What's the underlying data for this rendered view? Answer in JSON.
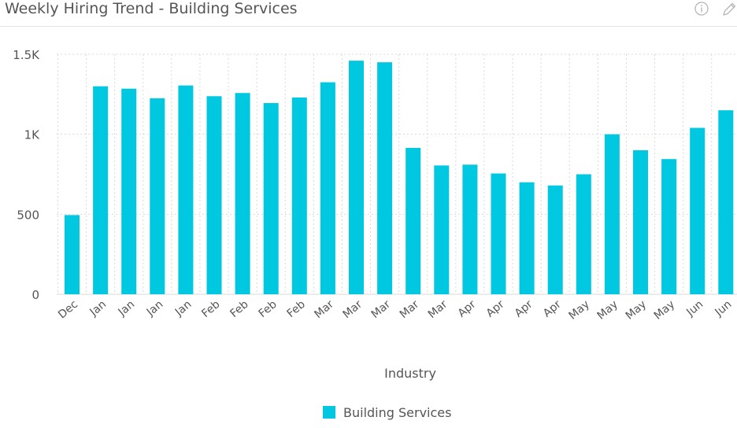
{
  "header": {
    "title": "Weekly Hiring Trend - Building Services",
    "info_icon": "info-icon",
    "edit_icon": "pencil-icon"
  },
  "colors": {
    "bar": "#00c8e1",
    "grid": "#d9d9d9",
    "text": "#555555"
  },
  "chart_data": {
    "type": "bar",
    "xlabel": "Industry",
    "ylabel": "",
    "ylim": [
      0,
      1500
    ],
    "yticks": [
      {
        "value": 0,
        "label": "0"
      },
      {
        "value": 500,
        "label": "500"
      },
      {
        "value": 1000,
        "label": "1K"
      },
      {
        "value": 1500,
        "label": "1.5K"
      }
    ],
    "grid": true,
    "legend_position": "bottom-center",
    "categories": [
      "Dec",
      "Jan",
      "Jan",
      "Jan",
      "Jan",
      "Feb",
      "Feb",
      "Feb",
      "Feb",
      "Mar",
      "Mar",
      "Mar",
      "Mar",
      "Mar",
      "Apr",
      "Apr",
      "Apr",
      "Apr",
      "May",
      "May",
      "May",
      "May",
      "Jun",
      "Jun"
    ],
    "series": [
      {
        "name": "Building Services",
        "values": [
          495,
          1300,
          1285,
          1225,
          1305,
          1238,
          1258,
          1195,
          1230,
          1325,
          1460,
          1450,
          915,
          805,
          810,
          755,
          700,
          680,
          750,
          1000,
          900,
          845,
          1040,
          1150
        ]
      }
    ]
  }
}
